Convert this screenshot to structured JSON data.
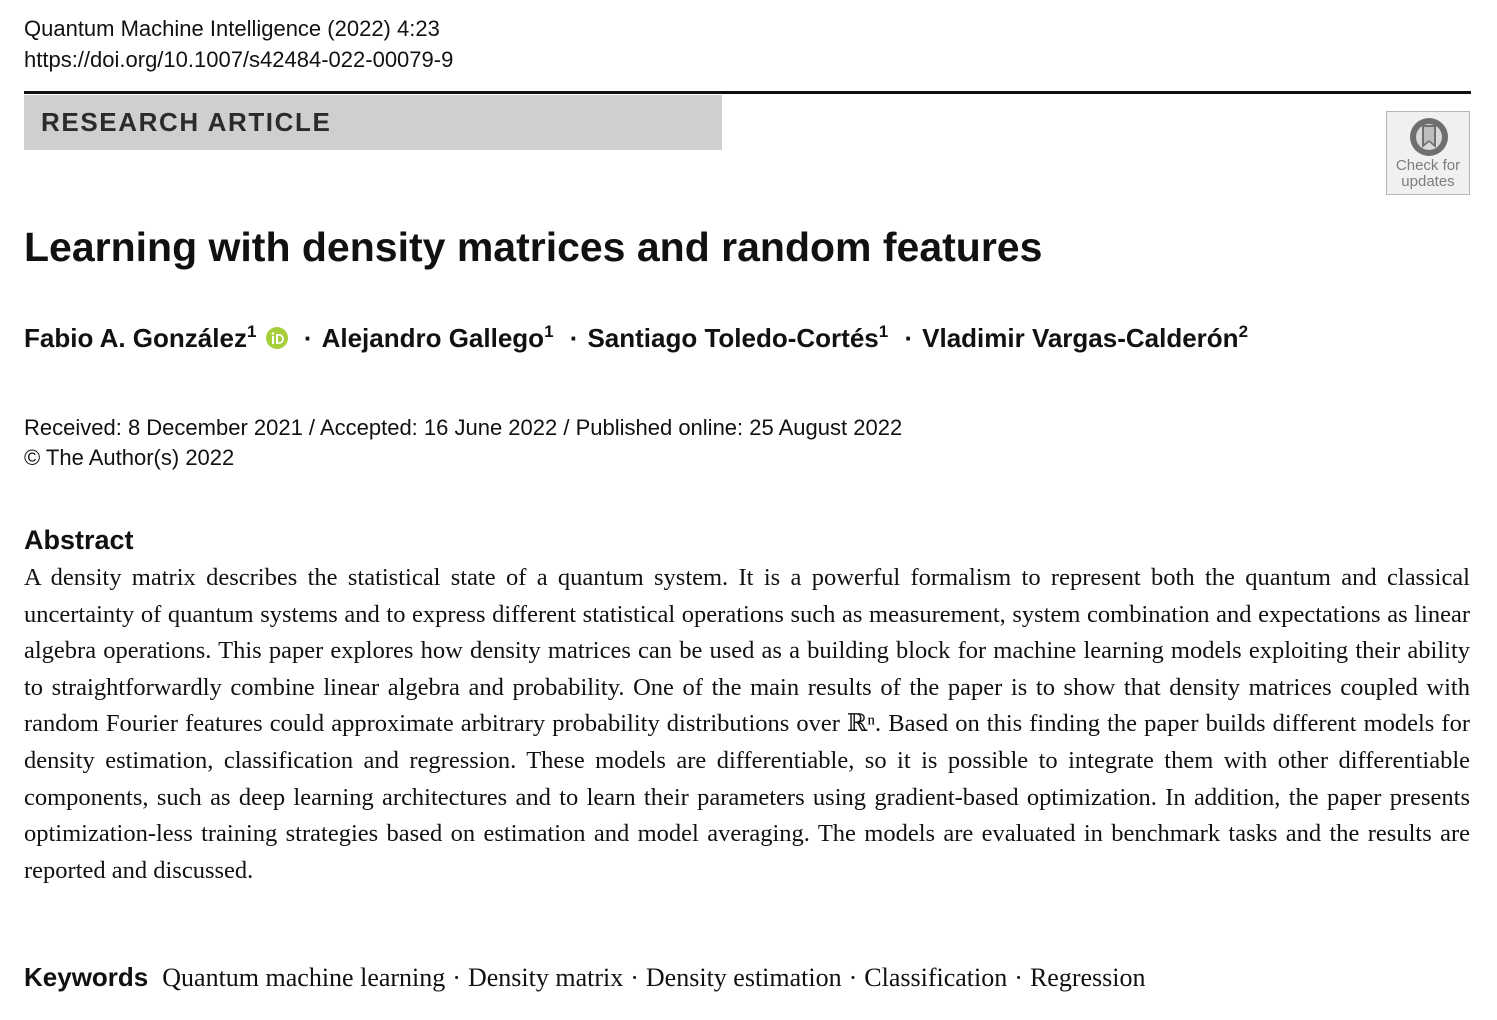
{
  "header": {
    "journal": "Quantum Machine Intelligence (2022) 4:23",
    "doi": "https://doi.org/10.1007/s42484-022-00079-9"
  },
  "article_type": "RESEARCH ARTICLE",
  "check_updates": {
    "label": "Check for\nupdates",
    "icon": "check-updates-icon"
  },
  "title": "Learning with density matrices and random features",
  "authors": [
    {
      "name": "Fabio A. González",
      "affiliation": "1",
      "orcid": true
    },
    {
      "name": "Alejandro Gallego",
      "affiliation": "1"
    },
    {
      "name": "Santiago Toledo-Cortés",
      "affiliation": "1"
    },
    {
      "name": "Vladimir Vargas-Calderón",
      "affiliation": "2"
    }
  ],
  "author_separator": "·",
  "dates": {
    "line": "Received: 8 December 2021 / Accepted: 16 June 2022 / Published online: 25 August 2022",
    "copyright": "© The Author(s) 2022"
  },
  "abstract": {
    "heading": "Abstract",
    "text": "A density matrix describes the statistical state of a quantum system. It is a powerful formalism to represent both the quantum and classical uncertainty of quantum systems and to express different statistical operations such as measurement, system combination and expectations as linear algebra operations. This paper explores how density matrices can be used as a building block for machine learning models exploiting their ability to straightforwardly combine linear algebra and probability. One of the main results of the paper is to show that density matrices coupled with random Fourier features could approximate arbitrary probability distributions over ℝⁿ. Based on this finding the paper builds different models for density estimation, classification and regression. These models are differentiable, so it is possible to integrate them with other differentiable components, such as deep learning architectures and to learn their parameters using gradient-based optimization. In addition, the paper presents optimization-less training strategies based on estimation and model averaging. The models are evaluated in benchmark tasks and the results are reported and discussed."
  },
  "keywords": {
    "label": "Keywords",
    "items": [
      "Quantum machine learning",
      "Density matrix",
      "Density estimation",
      "Classification",
      "Regression"
    ],
    "separator": "·"
  },
  "colors": {
    "band": "#cfcfcf",
    "orcid": "#a6ce39",
    "badge_text": "#7c7c7c"
  }
}
